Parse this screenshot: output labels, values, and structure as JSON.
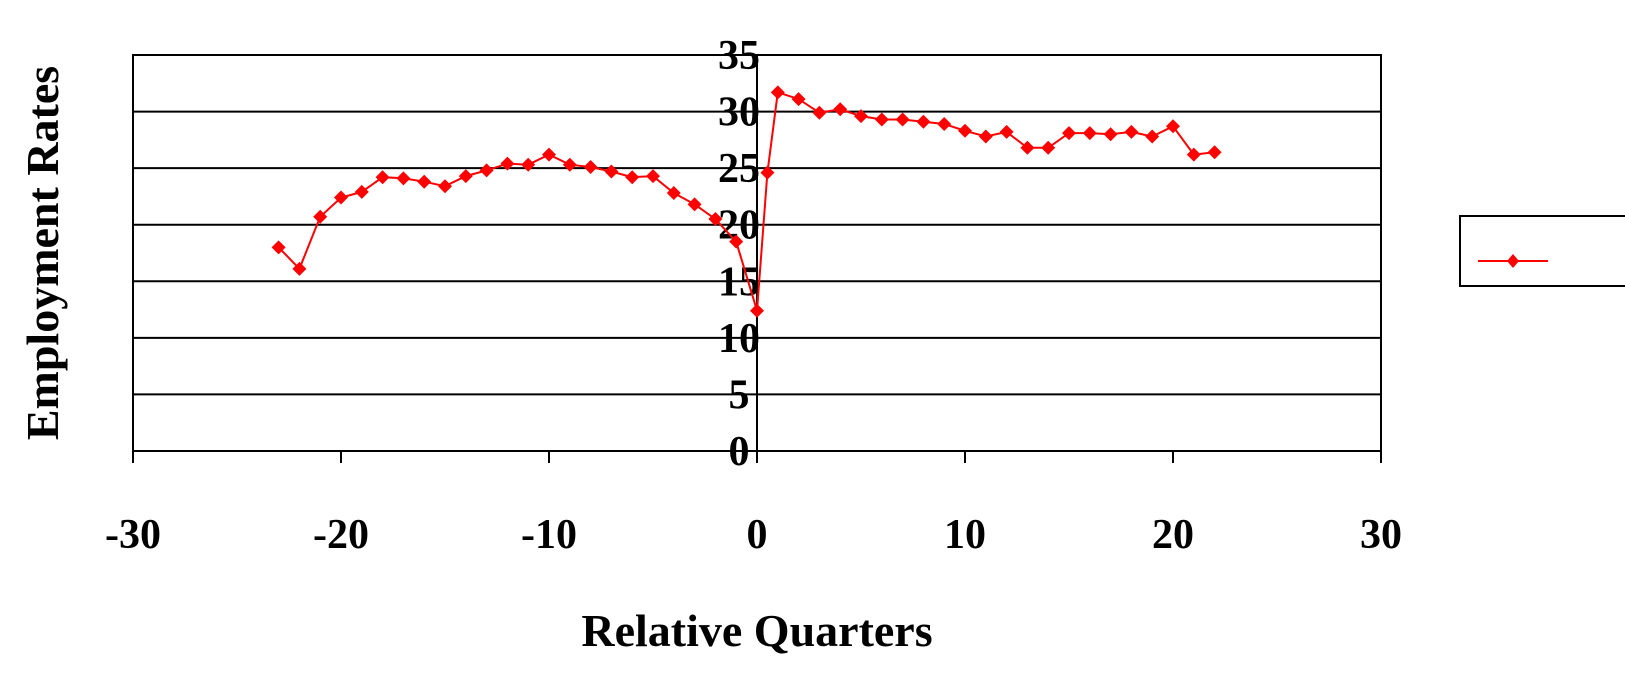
{
  "chart_data": {
    "type": "line",
    "title": "",
    "xlabel": "Relative Quarters",
    "ylabel": "Employment Rates",
    "xlim": [
      -30,
      30
    ],
    "ylim": [
      0,
      35
    ],
    "x_ticks": [
      -30,
      -20,
      -10,
      0,
      10,
      20,
      30
    ],
    "y_ticks": [
      0,
      5,
      10,
      15,
      20,
      25,
      30,
      35
    ],
    "grid": "horizontal",
    "legend_position": "right",
    "series": [
      {
        "color": "#ff0000",
        "marker": "diamond",
        "x": [
          -23,
          -22,
          -21,
          -20,
          -19,
          -18,
          -17,
          -16,
          -15,
          -14,
          -13,
          -12,
          -11,
          -10,
          -9,
          -8,
          -7,
          -6,
          -5,
          -4,
          -3,
          -2,
          -1,
          0,
          0.5,
          1,
          2,
          3,
          4,
          5,
          6,
          7,
          8,
          9,
          10,
          11,
          12,
          13,
          14,
          15,
          16,
          17,
          18,
          19,
          20,
          21,
          22
        ],
        "y": [
          18,
          16.1,
          20.7,
          22.4,
          22.9,
          24.2,
          24.1,
          23.8,
          23.4,
          24.3,
          24.8,
          25.4,
          25.3,
          26.2,
          25.3,
          25.1,
          24.7,
          24.2,
          24.3,
          22.8,
          21.8,
          20.5,
          18.5,
          12.4,
          24.6,
          31.7,
          31.1,
          29.9,
          30.2,
          29.6,
          29.3,
          29.3,
          29.1,
          28.9,
          28.3,
          27.8,
          28.2,
          26.8,
          26.8,
          28.1,
          28.1,
          28.0,
          28.2,
          27.8,
          28.7,
          26.2,
          26.4
        ]
      }
    ]
  }
}
